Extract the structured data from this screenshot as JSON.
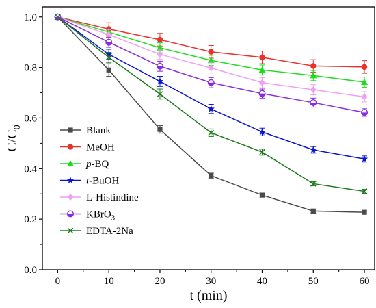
{
  "chart_data": {
    "type": "line",
    "title": "",
    "xlabel": "t (min)",
    "ylabel": "C/C",
    "ylabel_subscript": "0",
    "xlim": [
      -3,
      62
    ],
    "ylim": [
      0.0,
      1.04
    ],
    "x": [
      0,
      10,
      20,
      30,
      40,
      50,
      60
    ],
    "xticks": [
      "0",
      "10",
      "20",
      "30",
      "40",
      "50",
      "60"
    ],
    "yticks": [
      "0.0",
      "0.2",
      "0.4",
      "0.6",
      "0.8",
      "1.0"
    ],
    "grid": false,
    "legend_position": "left",
    "series": [
      {
        "name": "Blank",
        "legend_parts": [
          {
            "t": "Blank"
          }
        ],
        "color": "#4a4a4a",
        "marker": "square",
        "values": [
          1.0,
          0.79,
          0.555,
          0.372,
          0.295,
          0.232,
          0.227
        ],
        "errors": [
          0.0,
          0.025,
          0.015,
          0.01,
          0.008,
          0.008,
          0.006
        ]
      },
      {
        "name": "MeOH",
        "legend_parts": [
          {
            "t": "MeOH"
          }
        ],
        "color": "#e8322d",
        "marker": "circle",
        "values": [
          1.0,
          0.952,
          0.91,
          0.862,
          0.84,
          0.806,
          0.802
        ],
        "errors": [
          0.0,
          0.025,
          0.025,
          0.025,
          0.025,
          0.025,
          0.025
        ]
      },
      {
        "name": "p-BQ",
        "legend_parts": [
          {
            "t": "p",
            "italic": true
          },
          {
            "t": "-BQ"
          }
        ],
        "color": "#18e018",
        "marker": "triangle",
        "values": [
          1.0,
          0.94,
          0.878,
          0.828,
          0.79,
          0.768,
          0.742
        ],
        "errors": [
          0.0,
          0.02,
          0.02,
          0.02,
          0.02,
          0.02,
          0.02
        ]
      },
      {
        "name": "t-BuOH",
        "legend_parts": [
          {
            "t": "t",
            "italic": true
          },
          {
            "t": "-BuOH"
          }
        ],
        "color": "#0a14d0",
        "marker": "star",
        "values": [
          1.0,
          0.852,
          0.745,
          0.636,
          0.545,
          0.474,
          0.438
        ],
        "errors": [
          0.0,
          0.02,
          0.02,
          0.018,
          0.015,
          0.013,
          0.012
        ]
      },
      {
        "name": "L-Histindine",
        "legend_parts": [
          {
            "t": "L-Histindine"
          }
        ],
        "color": "#f0a0f0",
        "marker": "diamond",
        "values": [
          1.0,
          0.93,
          0.852,
          0.798,
          0.74,
          0.712,
          0.684
        ],
        "errors": [
          0.0,
          0.02,
          0.02,
          0.02,
          0.02,
          0.02,
          0.02
        ]
      },
      {
        "name": "KBrO3",
        "legend_parts": [
          {
            "t": "KBrO"
          },
          {
            "t": "3",
            "sub": true
          }
        ],
        "color": "#8a2be2",
        "marker": "halfcircle",
        "values": [
          1.0,
          0.9,
          0.805,
          0.74,
          0.697,
          0.661,
          0.622
        ],
        "errors": [
          0.0,
          0.02,
          0.02,
          0.02,
          0.018,
          0.018,
          0.015
        ]
      },
      {
        "name": "EDTA-2Na",
        "legend_parts": [
          {
            "t": "EDTA-2Na"
          }
        ],
        "color": "#1e7a1e",
        "marker": "x",
        "values": [
          1.0,
          0.84,
          0.695,
          0.542,
          0.465,
          0.34,
          0.31
        ],
        "errors": [
          0.0,
          0.02,
          0.02,
          0.015,
          0.012,
          0.008,
          0.008
        ]
      }
    ]
  }
}
